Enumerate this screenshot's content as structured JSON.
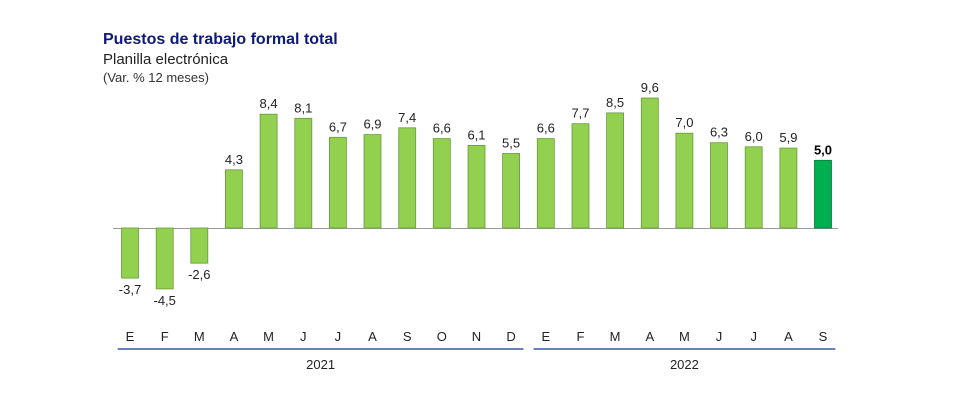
{
  "chart_data": {
    "type": "bar",
    "title": "Puestos de trabajo formal total",
    "subtitle": "Planilla electrónica",
    "unit": "(Var. % 12 meses)",
    "categories": [
      "E",
      "F",
      "M",
      "A",
      "M",
      "J",
      "J",
      "A",
      "S",
      "O",
      "N",
      "D",
      "E",
      "F",
      "M",
      "A",
      "M",
      "J",
      "J",
      "A",
      "S"
    ],
    "values": [
      -3.7,
      -4.5,
      -2.6,
      4.3,
      8.4,
      8.1,
      6.7,
      6.9,
      7.4,
      6.6,
      6.1,
      5.5,
      6.6,
      7.7,
      8.5,
      9.6,
      7.0,
      6.3,
      6.0,
      5.9,
      5.0
    ],
    "value_labels": [
      "-3,7",
      "-4,5",
      "-2,6",
      "4,3",
      "8,4",
      "8,1",
      "6,7",
      "6,9",
      "7,4",
      "6,6",
      "6,1",
      "5,5",
      "6,6",
      "7,7",
      "8,5",
      "9,6",
      "7,0",
      "6,3",
      "6,0",
      "5,9",
      "5,0"
    ],
    "year_groups": [
      {
        "label": "2021",
        "start": 0,
        "end": 11
      },
      {
        "label": "2022",
        "start": 12,
        "end": 20
      }
    ],
    "highlight_index": 20,
    "ylim": [
      -6,
      10
    ],
    "grid": false,
    "colors": {
      "bar": "#92d050",
      "bar_border": "#6a9a3a",
      "highlight": "#00b050",
      "highlight_border": "#007a37",
      "axis": "#999999",
      "year_line": "#3a56a8",
      "title": "#0d1a7a"
    }
  }
}
